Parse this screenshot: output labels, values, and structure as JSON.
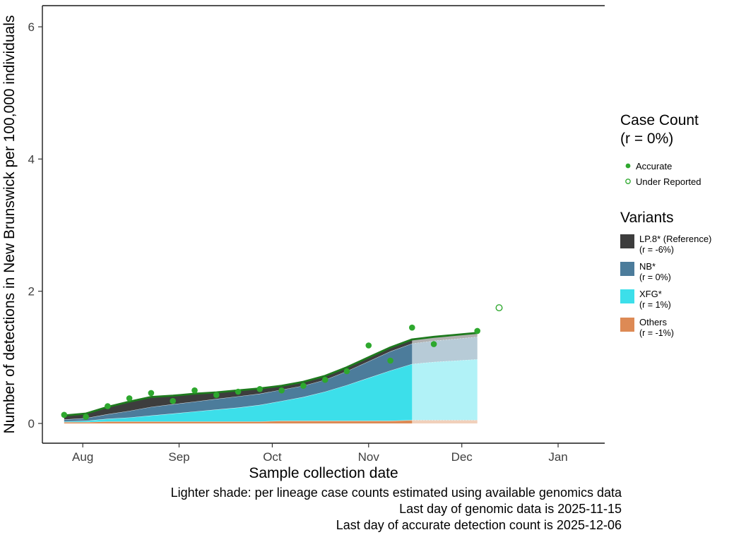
{
  "legend": {
    "case_count": {
      "title": "Case Count",
      "subtitle": "(r = 0%)",
      "items": [
        {
          "label": "Accurate",
          "marker": "filled-circle"
        },
        {
          "label": "Under Reported",
          "marker": "open-circle"
        }
      ]
    },
    "variants": {
      "title": "Variants",
      "items": [
        {
          "label": "LP.8* (Reference)",
          "growth": "(r = -6%)",
          "color": "#3D3D3D"
        },
        {
          "label": "NB*",
          "growth": "(r = 0%)",
          "color": "#4C7C9B"
        },
        {
          "label": "XFG*",
          "growth": "(r = 1%)",
          "color": "#3CDFEA"
        },
        {
          "label": "Others",
          "growth": "(r = -1%)",
          "color": "#DD8A55"
        }
      ]
    }
  },
  "captions": [
    "Lighter shade: per lineage case counts estimated using available genomics data",
    "Last day of genomic data is 2025-11-15",
    "Last day of accurate detection count is 2025-12-06"
  ],
  "chart_data": {
    "type": "area",
    "title": "",
    "xlabel": "Sample collection date",
    "ylabel": "Number of detections in New Brunswick per 100,000 individuals",
    "ylim": [
      0,
      6.3
    ],
    "y_ticks": [
      0,
      2,
      4,
      6
    ],
    "x_domain": [
      "2025-07-19",
      "2026-01-16"
    ],
    "x_ticks": [
      {
        "date": "2025-08-01",
        "label": "Aug"
      },
      {
        "date": "2025-09-01",
        "label": "Sep"
      },
      {
        "date": "2025-10-01",
        "label": "Oct"
      },
      {
        "date": "2025-11-01",
        "label": "Nov"
      },
      {
        "date": "2025-12-01",
        "label": "Dec"
      },
      {
        "date": "2026-01-01",
        "label": "Jan"
      }
    ],
    "genomic_cutoff": "2025-11-15",
    "estimated_region_opacity": 0.4,
    "dates": [
      "2025-07-26",
      "2025-08-02",
      "2025-08-09",
      "2025-08-16",
      "2025-08-23",
      "2025-08-30",
      "2025-09-06",
      "2025-09-13",
      "2025-09-20",
      "2025-09-27",
      "2025-10-04",
      "2025-10-11",
      "2025-10-18",
      "2025-10-25",
      "2025-11-01",
      "2025-11-08",
      "2025-11-15",
      "2025-11-22",
      "2025-11-29",
      "2025-12-06"
    ],
    "series": [
      {
        "name": "Others",
        "color": "#DD8A55",
        "values": [
          0.02,
          0.02,
          0.03,
          0.03,
          0.03,
          0.03,
          0.03,
          0.03,
          0.03,
          0.03,
          0.04,
          0.04,
          0.04,
          0.04,
          0.04,
          0.04,
          0.05,
          0.05,
          0.05,
          0.05
        ]
      },
      {
        "name": "XFG*",
        "color": "#3CDFEA",
        "values": [
          0.01,
          0.02,
          0.04,
          0.06,
          0.09,
          0.12,
          0.15,
          0.18,
          0.21,
          0.25,
          0.3,
          0.36,
          0.44,
          0.54,
          0.65,
          0.76,
          0.85,
          0.88,
          0.9,
          0.92
        ]
      },
      {
        "name": "NB*",
        "color": "#4C7C9B",
        "values": [
          0.03,
          0.04,
          0.07,
          0.1,
          0.13,
          0.14,
          0.15,
          0.16,
          0.17,
          0.17,
          0.17,
          0.17,
          0.18,
          0.21,
          0.25,
          0.29,
          0.31,
          0.32,
          0.33,
          0.34
        ]
      },
      {
        "name": "LP.8* (Reference)",
        "color": "#3D3D3D",
        "values": [
          0.06,
          0.07,
          0.11,
          0.14,
          0.15,
          0.13,
          0.12,
          0.1,
          0.09,
          0.08,
          0.06,
          0.06,
          0.06,
          0.06,
          0.06,
          0.06,
          0.06,
          0.06,
          0.06,
          0.06
        ]
      }
    ],
    "total_line": {
      "name": "Total detections",
      "color": "#1E7A1E"
    },
    "case_counts": {
      "accurate": {
        "label": "Accurate",
        "color": "#2EA82E",
        "points": [
          [
            "2025-07-26",
            0.13
          ],
          [
            "2025-08-02",
            0.1
          ],
          [
            "2025-08-09",
            0.26
          ],
          [
            "2025-08-16",
            0.38
          ],
          [
            "2025-08-23",
            0.46
          ],
          [
            "2025-08-30",
            0.34
          ],
          [
            "2025-09-06",
            0.5
          ],
          [
            "2025-09-13",
            0.43
          ],
          [
            "2025-09-20",
            0.48
          ],
          [
            "2025-09-27",
            0.52
          ],
          [
            "2025-10-04",
            0.5
          ],
          [
            "2025-10-11",
            0.57
          ],
          [
            "2025-10-18",
            0.66
          ],
          [
            "2025-10-25",
            0.79
          ],
          [
            "2025-11-01",
            1.18
          ],
          [
            "2025-11-08",
            0.95
          ],
          [
            "2025-11-15",
            1.45
          ],
          [
            "2025-11-22",
            1.2
          ],
          [
            "2025-12-06",
            1.4
          ]
        ]
      },
      "under_reported": {
        "label": "Under Reported",
        "color": "#2EA82E",
        "points": [
          [
            "2025-12-13",
            1.75
          ]
        ]
      }
    }
  }
}
